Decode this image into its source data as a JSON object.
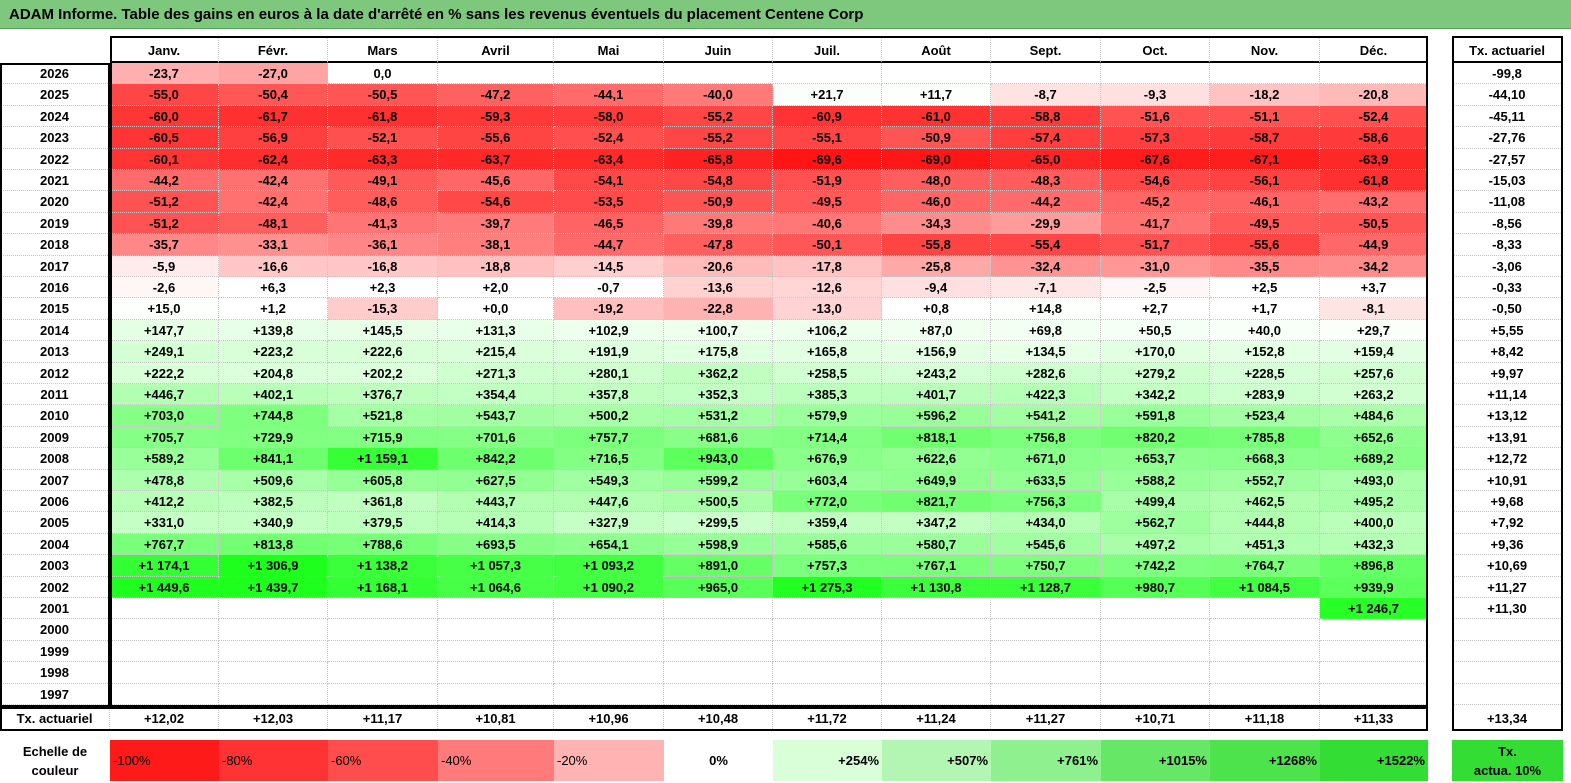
{
  "title": "ADAM Informe. Table des gains en euros à la date d'arrêté en % sans les revenus éventuels du placement Centene Corp",
  "months": [
    "Janv.",
    "Févr.",
    "Mars",
    "Avril",
    "Mai",
    "Juin",
    "Juil.",
    "Août",
    "Sept.",
    "Oct.",
    "Nov.",
    "Déc."
  ],
  "ta_header": "Tx. actuariel",
  "rows": [
    {
      "year": "2026",
      "v": [
        "-23,7",
        "-27,0",
        "0,0",
        "",
        "",
        "",
        "",
        "",
        "",
        "",
        "",
        ""
      ],
      "ta": "-99,8"
    },
    {
      "year": "2025",
      "v": [
        "-55,0",
        "-50,4",
        "-50,5",
        "-47,2",
        "-44,1",
        "-40,0",
        "+21,7",
        "+11,7",
        "-8,7",
        "-9,3",
        "-18,2",
        "-20,8"
      ],
      "ta": "-44,10"
    },
    {
      "year": "2024",
      "v": [
        "-60,0",
        "-61,7",
        "-61,8",
        "-59,3",
        "-58,0",
        "-55,2",
        "-60,9",
        "-61,0",
        "-58,8",
        "-51,6",
        "-51,1",
        "-52,4"
      ],
      "ta": "-45,11"
    },
    {
      "year": "2023",
      "v": [
        "-60,5",
        "-56,9",
        "-52,1",
        "-55,6",
        "-52,4",
        "-55,2",
        "-55,1",
        "-50,9",
        "-57,4",
        "-57,3",
        "-58,7",
        "-58,6"
      ],
      "ta": "-27,76"
    },
    {
      "year": "2022",
      "v": [
        "-60,1",
        "-62,4",
        "-63,3",
        "-63,7",
        "-63,4",
        "-65,8",
        "-69,6",
        "-69,0",
        "-65,0",
        "-67,6",
        "-67,1",
        "-63,9"
      ],
      "ta": "-27,57"
    },
    {
      "year": "2021",
      "v": [
        "-44,2",
        "-42,4",
        "-49,1",
        "-45,6",
        "-54,1",
        "-54,8",
        "-51,9",
        "-48,0",
        "-48,3",
        "-54,6",
        "-56,1",
        "-61,8"
      ],
      "ta": "-15,03"
    },
    {
      "year": "2020",
      "v": [
        "-51,2",
        "-42,4",
        "-48,6",
        "-54,6",
        "-53,5",
        "-50,9",
        "-49,5",
        "-46,0",
        "-44,2",
        "-45,2",
        "-46,1",
        "-43,2"
      ],
      "ta": "-11,08"
    },
    {
      "year": "2019",
      "v": [
        "-51,2",
        "-48,1",
        "-41,3",
        "-39,7",
        "-46,5",
        "-39,8",
        "-40,6",
        "-34,3",
        "-29,9",
        "-41,7",
        "-49,5",
        "-50,5"
      ],
      "ta": "-8,56"
    },
    {
      "year": "2018",
      "v": [
        "-35,7",
        "-33,1",
        "-36,1",
        "-38,1",
        "-44,7",
        "-47,8",
        "-50,1",
        "-55,8",
        "-55,4",
        "-51,7",
        "-55,6",
        "-44,9"
      ],
      "ta": "-8,33"
    },
    {
      "year": "2017",
      "v": [
        "-5,9",
        "-16,6",
        "-16,8",
        "-18,8",
        "-14,5",
        "-20,6",
        "-17,8",
        "-25,8",
        "-32,4",
        "-31,0",
        "-35,5",
        "-34,2"
      ],
      "ta": "-3,06"
    },
    {
      "year": "2016",
      "v": [
        "-2,6",
        "+6,3",
        "+2,3",
        "+2,0",
        "-0,7",
        "-13,6",
        "-12,6",
        "-9,4",
        "-7,1",
        "-2,5",
        "+2,5",
        "+3,7"
      ],
      "ta": "-0,33"
    },
    {
      "year": "2015",
      "v": [
        "+15,0",
        "+1,2",
        "-15,3",
        "+0,0",
        "-19,2",
        "-22,8",
        "-13,0",
        "+0,8",
        "+14,8",
        "+2,7",
        "+1,7",
        "-8,1"
      ],
      "ta": "-0,50"
    },
    {
      "year": "2014",
      "v": [
        "+147,7",
        "+139,8",
        "+145,5",
        "+131,3",
        "+102,9",
        "+100,7",
        "+106,2",
        "+87,0",
        "+69,8",
        "+50,5",
        "+40,0",
        "+29,7"
      ],
      "ta": "+5,55"
    },
    {
      "year": "2013",
      "v": [
        "+249,1",
        "+223,2",
        "+222,6",
        "+215,4",
        "+191,9",
        "+175,8",
        "+165,8",
        "+156,9",
        "+134,5",
        "+170,0",
        "+152,8",
        "+159,4"
      ],
      "ta": "+8,42"
    },
    {
      "year": "2012",
      "v": [
        "+222,2",
        "+204,8",
        "+202,2",
        "+271,3",
        "+280,1",
        "+362,2",
        "+258,5",
        "+243,2",
        "+282,6",
        "+279,2",
        "+228,5",
        "+257,6"
      ],
      "ta": "+9,97"
    },
    {
      "year": "2011",
      "v": [
        "+446,7",
        "+402,1",
        "+376,7",
        "+354,4",
        "+357,8",
        "+352,3",
        "+385,3",
        "+401,7",
        "+422,3",
        "+342,2",
        "+283,9",
        "+263,2"
      ],
      "ta": "+11,14"
    },
    {
      "year": "2010",
      "v": [
        "+703,0",
        "+744,8",
        "+521,8",
        "+543,7",
        "+500,2",
        "+531,2",
        "+579,9",
        "+596,2",
        "+541,2",
        "+591,8",
        "+523,4",
        "+484,6"
      ],
      "ta": "+13,12"
    },
    {
      "year": "2009",
      "v": [
        "+705,7",
        "+729,9",
        "+715,9",
        "+701,6",
        "+757,7",
        "+681,6",
        "+714,4",
        "+818,1",
        "+756,8",
        "+820,2",
        "+785,8",
        "+652,6"
      ],
      "ta": "+13,91"
    },
    {
      "year": "2008",
      "v": [
        "+589,2",
        "+841,1",
        "+1 159,1",
        "+842,2",
        "+716,5",
        "+943,0",
        "+676,9",
        "+622,6",
        "+671,0",
        "+653,7",
        "+668,3",
        "+689,2"
      ],
      "ta": "+12,72"
    },
    {
      "year": "2007",
      "v": [
        "+478,8",
        "+509,6",
        "+605,8",
        "+627,5",
        "+549,3",
        "+599,2",
        "+603,4",
        "+649,9",
        "+633,5",
        "+588,2",
        "+552,7",
        "+493,0"
      ],
      "ta": "+10,91"
    },
    {
      "year": "2006",
      "v": [
        "+412,2",
        "+382,5",
        "+361,8",
        "+443,7",
        "+447,6",
        "+500,5",
        "+772,0",
        "+821,7",
        "+756,3",
        "+499,4",
        "+462,5",
        "+495,2"
      ],
      "ta": "+9,68"
    },
    {
      "year": "2005",
      "v": [
        "+331,0",
        "+340,9",
        "+379,5",
        "+414,3",
        "+327,9",
        "+299,5",
        "+359,4",
        "+347,2",
        "+434,0",
        "+562,7",
        "+444,8",
        "+400,0"
      ],
      "ta": "+7,92"
    },
    {
      "year": "2004",
      "v": [
        "+767,7",
        "+813,8",
        "+788,6",
        "+693,5",
        "+654,1",
        "+598,9",
        "+585,6",
        "+580,7",
        "+545,6",
        "+497,2",
        "+451,3",
        "+432,3"
      ],
      "ta": "+9,36"
    },
    {
      "year": "2003",
      "v": [
        "+1 174,1",
        "+1 306,9",
        "+1 138,2",
        "+1 057,3",
        "+1 093,2",
        "+891,0",
        "+757,3",
        "+767,1",
        "+750,7",
        "+742,2",
        "+764,7",
        "+896,8"
      ],
      "ta": "+10,69"
    },
    {
      "year": "2002",
      "v": [
        "+1 449,6",
        "+1 439,7",
        "+1 168,1",
        "+1 064,6",
        "+1 090,2",
        "+965,0",
        "+1 275,3",
        "+1 130,8",
        "+1 128,7",
        "+980,7",
        "+1 084,5",
        "+939,9"
      ],
      "ta": "+11,27"
    },
    {
      "year": "2001",
      "v": [
        "",
        "",
        "",
        "",
        "",
        "",
        "",
        "",
        "",
        "",
        "",
        "+1 246,7"
      ],
      "ta": "+11,30"
    },
    {
      "year": "2000",
      "v": [
        "",
        "",
        "",
        "",
        "",
        "",
        "",
        "",
        "",
        "",
        "",
        ""
      ],
      "ta": ""
    },
    {
      "year": "1999",
      "v": [
        "",
        "",
        "",
        "",
        "",
        "",
        "",
        "",
        "",
        "",
        "",
        ""
      ],
      "ta": ""
    },
    {
      "year": "1998",
      "v": [
        "",
        "",
        "",
        "",
        "",
        "",
        "",
        "",
        "",
        "",
        "",
        ""
      ],
      "ta": ""
    },
    {
      "year": "1997",
      "v": [
        "",
        "",
        "",
        "",
        "",
        "",
        "",
        "",
        "",
        "",
        "",
        ""
      ],
      "ta": ""
    }
  ],
  "footer": {
    "label": "Tx. actuariel",
    "values": [
      "+12,02",
      "+12,03",
      "+11,17",
      "+10,81",
      "+10,96",
      "+10,48",
      "+11,72",
      "+11,24",
      "+11,27",
      "+10,71",
      "+11,18",
      "+11,33"
    ],
    "ta": "+13,34"
  },
  "legend": {
    "label_line1": "Echelle de",
    "label_line2": "couleur",
    "items": [
      {
        "text": "-100%",
        "color": "#ff1a1a",
        "align": "left"
      },
      {
        "text": "-80%",
        "color": "#ff3333",
        "align": "left"
      },
      {
        "text": "-60%",
        "color": "#ff4d4d",
        "align": "left"
      },
      {
        "text": "-40%",
        "color": "#ff7a7a",
        "align": "left"
      },
      {
        "text": "-20%",
        "color": "#ffb3b3",
        "align": "left"
      },
      {
        "text": "0%",
        "color": "#ffffff",
        "align": "center"
      },
      {
        "text": "+254%",
        "color": "#d9ffd9",
        "align": "right"
      },
      {
        "text": "+507%",
        "color": "#b3f5b3",
        "align": "right"
      },
      {
        "text": "+761%",
        "color": "#8ff08f",
        "align": "right"
      },
      {
        "text": "+1015%",
        "color": "#66e866",
        "align": "right"
      },
      {
        "text": "+1268%",
        "color": "#4de34d",
        "align": "right"
      },
      {
        "text": "+1522%",
        "color": "#33dd33",
        "align": "right"
      }
    ],
    "ta_line1": "Tx.",
    "ta_line2": "actua. 10%",
    "ta_color": "#33dd33"
  }
}
